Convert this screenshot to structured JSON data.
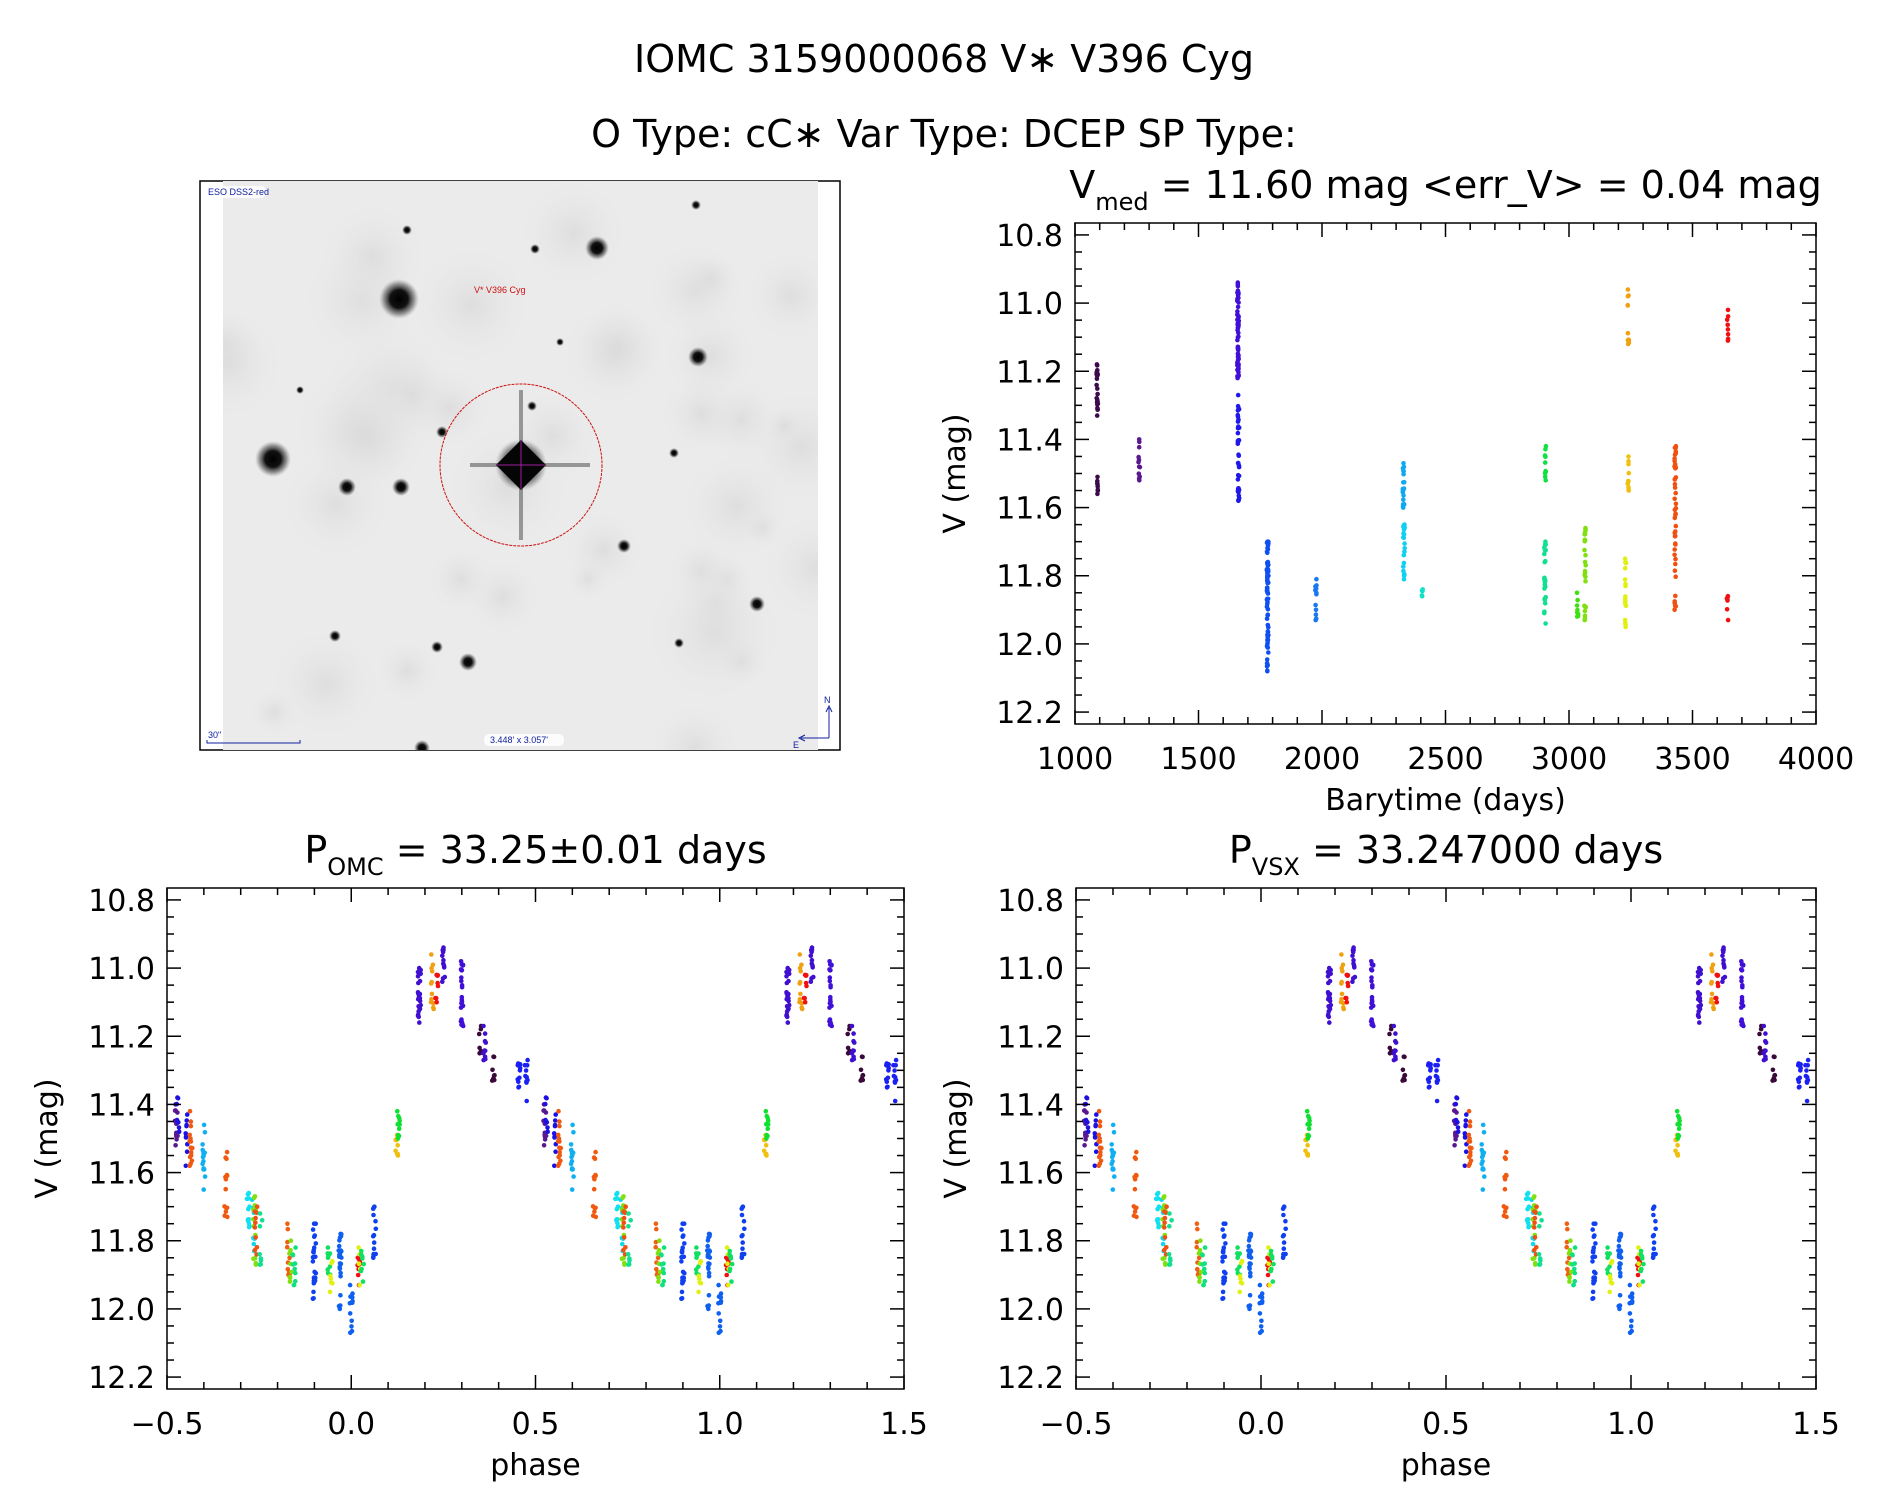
{
  "header": {
    "line1": "IOMC 3159000068   V∗ V396 Cyg",
    "line2": "O Type: cC∗  Var Type: DCEP  SP Type:"
  },
  "image_panel": {
    "survey_label": "ESO DSS2-red",
    "target_label": "V* V396 Cyg",
    "scale_label": "30\"",
    "fov_label": "3.448' x 3.057'",
    "north_label": "N",
    "east_label": "E",
    "label_color": "#1020a0",
    "target_color": "#cc1010"
  },
  "chart_data": [
    {
      "type": "scatter",
      "title_main": "V",
      "title_sub": "med",
      "title_rest": " = 11.60 mag <err_V> = 0.04 mag",
      "xlabel": "Barytime (days)",
      "ylabel": "V (mag)",
      "xlim": [
        1000,
        4000
      ],
      "ylim": [
        10.765,
        12.235
      ],
      "y_reversed": true,
      "x_ticks": [
        "1000",
        "1500",
        "2000",
        "2500",
        "3000",
        "3500",
        "4000"
      ],
      "y_ticks": [
        "10.8",
        "11.0",
        "11.2",
        "11.4",
        "11.6",
        "11.8",
        "12.0",
        "12.2"
      ],
      "x_minor": 100,
      "y_minor": 0.05,
      "point_groups_fields": [
        "time",
        "mag_min",
        "mag_max",
        "color",
        "count"
      ],
      "point_groups": [
        [
          1090,
          11.18,
          11.33,
          "#3c0a4a",
          25
        ],
        [
          1092,
          11.51,
          11.56,
          "#3c0a4a",
          8
        ],
        [
          1260,
          11.4,
          11.52,
          "#5a1890",
          12
        ],
        [
          1660,
          10.94,
          11.22,
          "#4010d8",
          60
        ],
        [
          1662,
          11.27,
          11.58,
          "#2018e8",
          40
        ],
        [
          1780,
          11.7,
          12.08,
          "#1050f0",
          70
        ],
        [
          1975,
          11.81,
          11.93,
          "#1878f0",
          12
        ],
        [
          2330,
          11.47,
          11.6,
          "#10a8f0",
          20
        ],
        [
          2332,
          11.65,
          11.81,
          "#10d0f0",
          20
        ],
        [
          2405,
          11.84,
          11.86,
          "#10e0c8",
          5
        ],
        [
          2905,
          11.42,
          11.52,
          "#10e040",
          10
        ],
        [
          2903,
          11.7,
          11.94,
          "#10e090",
          25
        ],
        [
          3035,
          11.85,
          11.92,
          "#40e010",
          8
        ],
        [
          3065,
          11.66,
          11.93,
          "#80e010",
          25
        ],
        [
          3228,
          11.75,
          11.95,
          "#e0f010",
          18
        ],
        [
          3240,
          10.96,
          11.12,
          "#f0a010",
          12
        ],
        [
          3240,
          11.45,
          11.55,
          "#f0c010",
          10
        ],
        [
          3430,
          11.42,
          11.9,
          "#f05010",
          45
        ],
        [
          3642,
          11.02,
          11.11,
          "#f01010",
          8
        ],
        [
          3642,
          11.86,
          11.93,
          "#f01010",
          6
        ]
      ]
    },
    {
      "type": "scatter",
      "title_main": "P",
      "title_sub": "OMC",
      "title_rest": " = 33.25±0.01 days",
      "xlabel": "phase",
      "ylabel": "V (mag)",
      "xlim": [
        -0.5,
        1.5
      ],
      "ylim": [
        10.765,
        12.235
      ],
      "y_reversed": true,
      "x_ticks": [
        "−0.5",
        "0.0",
        "0.5",
        "1.0",
        "1.5"
      ],
      "y_ticks": [
        "10.8",
        "11.0",
        "11.2",
        "11.4",
        "11.6",
        "11.8",
        "12.0",
        "12.2"
      ],
      "x_minor": 0.1,
      "y_minor": 0.05,
      "phase_repeated": true,
      "point_groups_fields": [
        "phase",
        "mag_min",
        "mag_max",
        "color",
        "count"
      ],
      "point_groups": "phase_groups"
    },
    {
      "type": "scatter",
      "title_main": "P",
      "title_sub": "VSX",
      "title_rest": " = 33.247000 days",
      "xlabel": "phase",
      "ylabel": "V (mag)",
      "xlim": [
        -0.5,
        1.5
      ],
      "ylim": [
        10.765,
        12.235
      ],
      "y_reversed": true,
      "x_ticks": [
        "−0.5",
        "0.0",
        "0.5",
        "1.0",
        "1.5"
      ],
      "y_ticks": [
        "10.8",
        "11.0",
        "11.2",
        "11.4",
        "11.6",
        "11.8",
        "12.0",
        "12.2"
      ],
      "x_minor": 0.1,
      "y_minor": 0.05,
      "phase_repeated": true,
      "point_groups_fields": [
        "phase",
        "mag_min",
        "mag_max",
        "color",
        "count"
      ],
      "point_groups": "phase_groups"
    }
  ],
  "phase_groups": [
    [
      -0.475,
      11.4,
      11.52,
      "#5a1890",
      12
    ],
    [
      -0.47,
      11.38,
      11.48,
      "#2010e0",
      8
    ],
    [
      -0.447,
      11.43,
      11.58,
      "#1a10e8",
      10
    ],
    [
      -0.435,
      11.42,
      11.58,
      "#f05a10",
      15
    ],
    [
      -0.4,
      11.46,
      11.65,
      "#10b0f0",
      15
    ],
    [
      -0.34,
      11.54,
      11.73,
      "#f05a10",
      14
    ],
    [
      -0.28,
      11.66,
      11.76,
      "#10e0f0",
      12
    ],
    [
      -0.265,
      11.68,
      11.83,
      "#10d8f0",
      8
    ],
    [
      -0.262,
      11.67,
      11.87,
      "#80e010",
      12
    ],
    [
      -0.258,
      11.7,
      11.84,
      "#f05010",
      10
    ],
    [
      -0.245,
      11.72,
      11.87,
      "#10e090",
      8
    ],
    [
      -0.17,
      11.75,
      11.9,
      "#f06010",
      10
    ],
    [
      -0.165,
      11.8,
      11.92,
      "#80e010",
      10
    ],
    [
      -0.155,
      11.82,
      11.93,
      "#10e080",
      10
    ],
    [
      -0.1,
      11.75,
      11.97,
      "#1040f0",
      25
    ],
    [
      -0.06,
      11.82,
      11.9,
      "#10e060",
      10
    ],
    [
      -0.055,
      11.86,
      11.95,
      "#e0f010",
      8
    ],
    [
      -0.03,
      11.78,
      12.0,
      "#1060f0",
      25
    ],
    [
      0.0,
      11.93,
      12.07,
      "#1060f0",
      12
    ],
    [
      0.02,
      11.85,
      11.93,
      "#f01010",
      8
    ],
    [
      0.022,
      11.82,
      11.93,
      "#e0f010",
      5
    ],
    [
      0.03,
      11.83,
      11.92,
      "#10e060",
      8
    ],
    [
      0.063,
      11.7,
      11.85,
      "#1040f0",
      14
    ],
    [
      0.124,
      11.49,
      11.55,
      "#f0c010",
      10
    ],
    [
      0.128,
      11.42,
      11.5,
      "#10e030",
      10
    ],
    [
      0.185,
      11.0,
      11.16,
      "#4010d0",
      30
    ],
    [
      0.22,
      10.96,
      11.12,
      "#f0a010",
      12
    ],
    [
      0.232,
      11.02,
      11.1,
      "#f01010",
      8
    ],
    [
      0.25,
      10.94,
      11.04,
      "#4010d0",
      12
    ],
    [
      0.3,
      10.98,
      11.17,
      "#4010d8",
      25
    ],
    [
      0.35,
      11.17,
      11.25,
      "#3a0a3a",
      8
    ],
    [
      0.362,
      11.17,
      11.27,
      "#4010d0",
      10
    ],
    [
      0.385,
      11.26,
      11.33,
      "#3a0a3a",
      8
    ],
    [
      0.455,
      11.28,
      11.35,
      "#1a20f0",
      12
    ],
    [
      0.475,
      11.27,
      11.39,
      "#1a20f0",
      10
    ]
  ]
}
